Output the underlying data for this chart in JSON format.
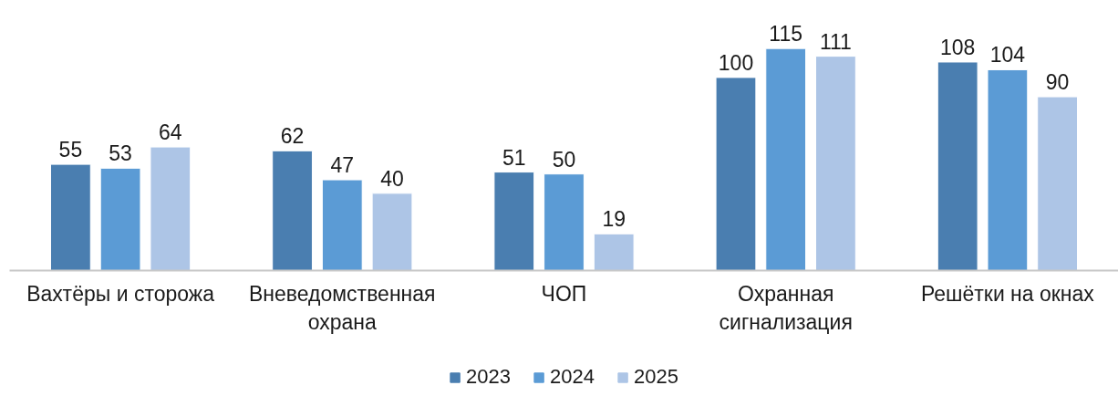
{
  "chart_data": {
    "type": "bar",
    "categories": [
      "Вахтёры и сторожа",
      "Вневедомственная охрана",
      "ЧОП",
      "Охранная сигнализация",
      "Решётки на окнах"
    ],
    "series": [
      {
        "name": "2023",
        "color": "#4a7eb0",
        "values": [
          55,
          62,
          51,
          100,
          108
        ]
      },
      {
        "name": "2024",
        "color": "#5b9bd5",
        "values": [
          53,
          47,
          50,
          115,
          104
        ]
      },
      {
        "name": "2025",
        "color": "#adc5e6",
        "values": [
          64,
          40,
          19,
          111,
          90
        ]
      }
    ],
    "data_labels": true,
    "legend": "bottom",
    "grid": false
  }
}
